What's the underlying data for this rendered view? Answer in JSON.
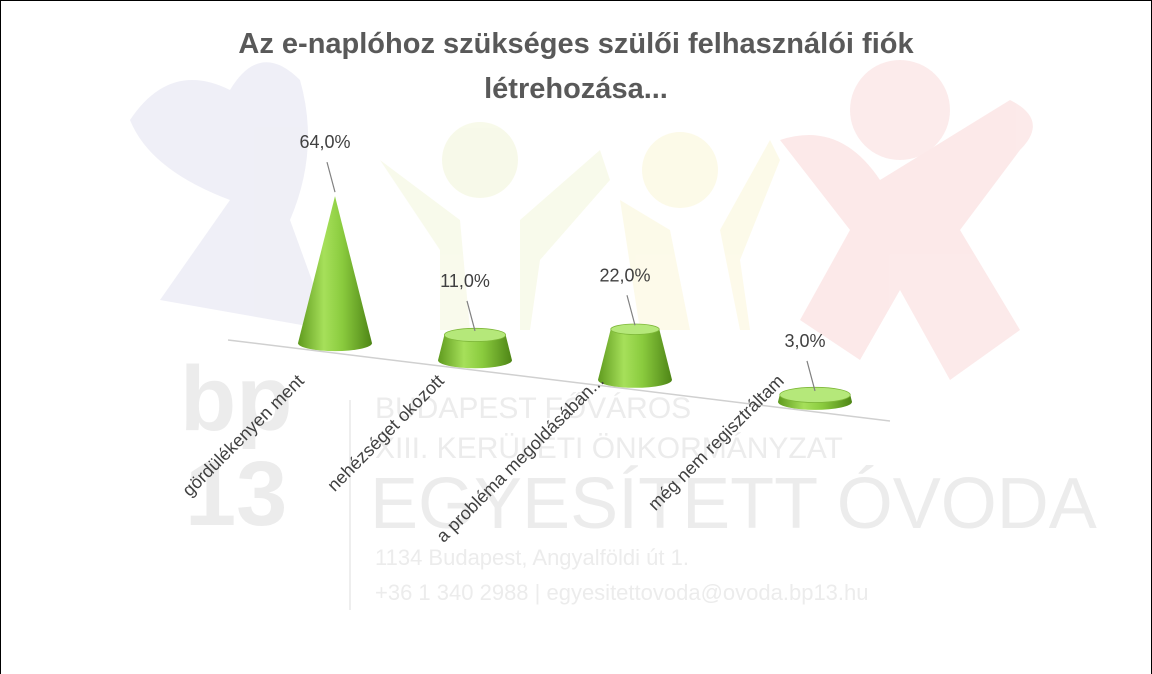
{
  "chart_data": {
    "type": "cone",
    "title": "Az e-naplóhoz szükséges szülői felhasználói fiók létrehozása...",
    "categories": [
      "gördülékenyen ment",
      "nehézséget okozott",
      "a probléma megoldásában...",
      "még nem regisztráltam"
    ],
    "values": [
      64,
      11,
      22,
      3
    ],
    "value_labels": [
      "64,0%",
      "11,0%",
      "22,0%",
      "3,0%"
    ],
    "color": "#92d050",
    "watermark": [
      "bp",
      "13",
      "BUDAPEST FŐVÁROS",
      "XIII. KERÜLETI ÖNKORMÁNYZAT",
      "EGYESÍTETT ÓVODA",
      "1134 Budapest, Angyalföldi út 1.",
      "+36 1 340 2988 | egyesitettovoda@ovoda.bp13.hu"
    ]
  }
}
